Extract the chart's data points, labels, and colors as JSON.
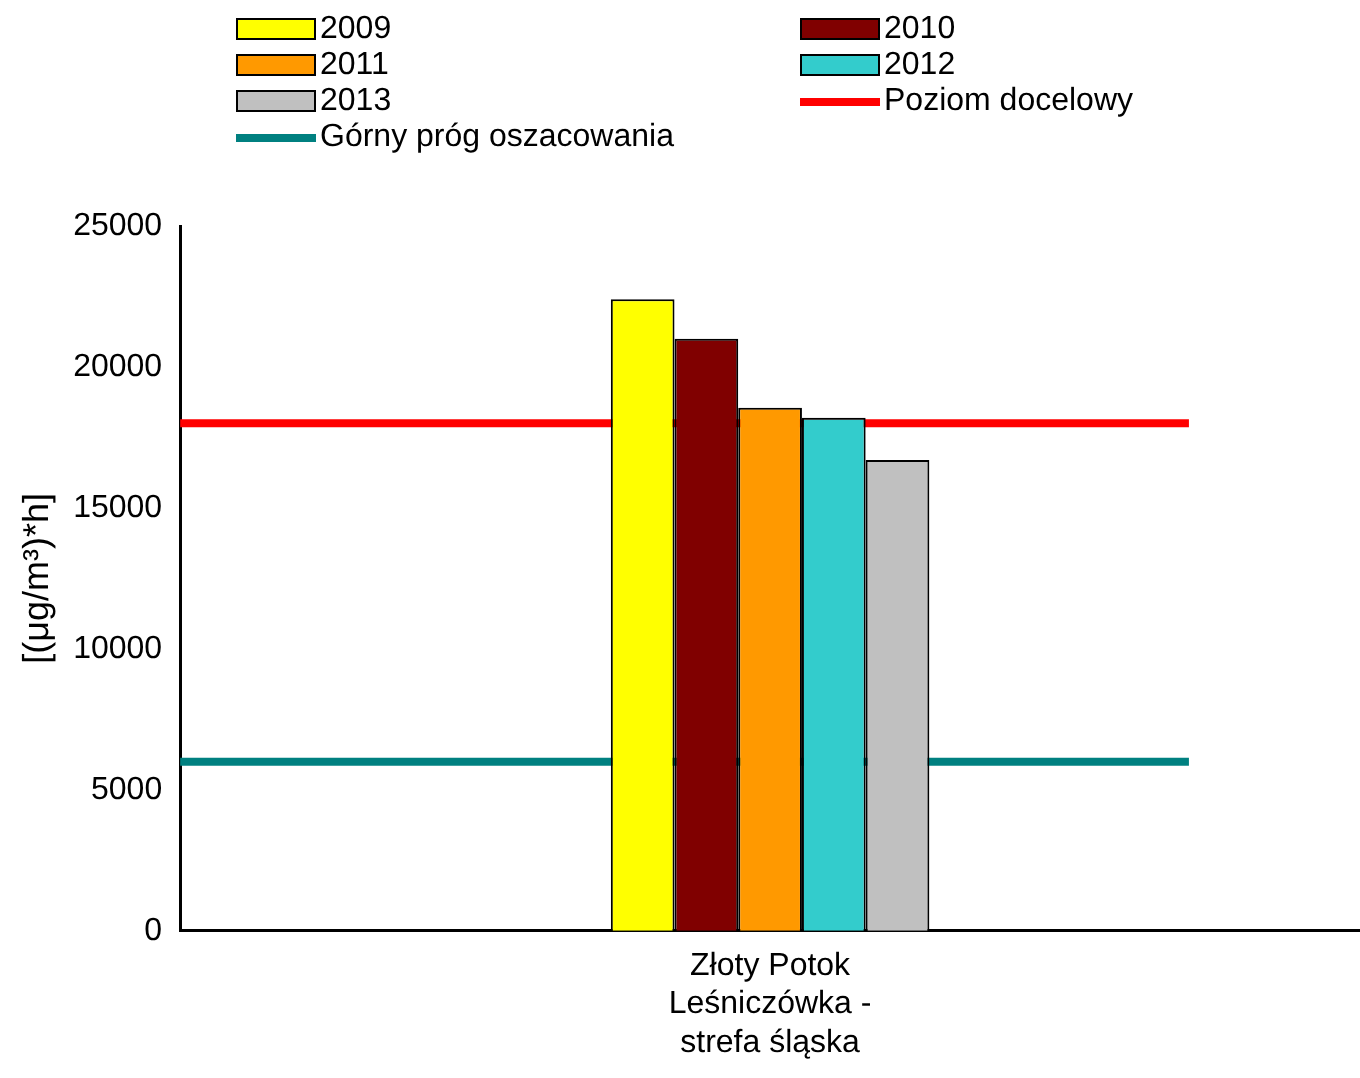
{
  "chart_data": {
    "type": "bar",
    "ylabel": "[(μg/m³)*h]",
    "categories": [
      "Złoty Potok Leśniczówka - strefa śląska"
    ],
    "series": [
      {
        "name": "2009",
        "color": "#ffff00",
        "values": [
          22400
        ]
      },
      {
        "name": "2010",
        "color": "#800000",
        "values": [
          21000
        ]
      },
      {
        "name": "2011",
        "color": "#ff9900",
        "values": [
          18550
        ]
      },
      {
        "name": "2012",
        "color": "#33cccc",
        "values": [
          18200
        ]
      },
      {
        "name": "2013",
        "color": "#c0c0c0",
        "values": [
          16700
        ]
      }
    ],
    "ref_lines": [
      {
        "axis": "y",
        "value": 18000,
        "label": "Poziom docelowy",
        "color": "#ff0000"
      },
      {
        "axis": "y",
        "value": 6000,
        "label": "Górny próg oszacowania",
        "color": "#008080"
      }
    ],
    "ylim": [
      0,
      25000
    ],
    "yticks": [
      0,
      5000,
      10000,
      15000,
      20000,
      25000
    ],
    "grid": false,
    "legend": "top"
  }
}
